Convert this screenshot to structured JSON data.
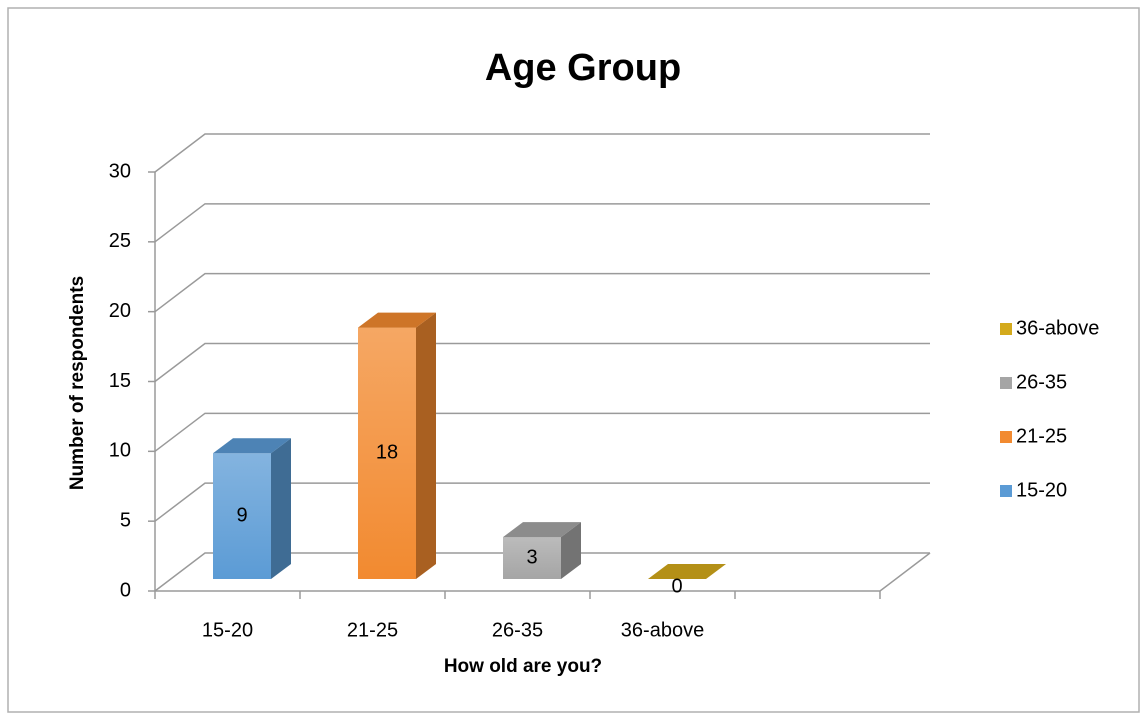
{
  "chart_data": {
    "type": "bar3d",
    "title": "Age Group",
    "x_label": "How old are you?",
    "y_label": "Number of respondents",
    "categories": [
      "15-20",
      "21-25",
      "26-35",
      "36-above",
      null
    ],
    "values": [
      9,
      18,
      3,
      0,
      null
    ],
    "colors": [
      "#5b9bd5",
      "#f28a30",
      "#a5a5a5",
      "#d4aa1c",
      null
    ],
    "ylim": [
      0,
      30
    ],
    "yticks": [
      0,
      5,
      10,
      15,
      20,
      25,
      30
    ],
    "grid": true,
    "legend": "right"
  }
}
